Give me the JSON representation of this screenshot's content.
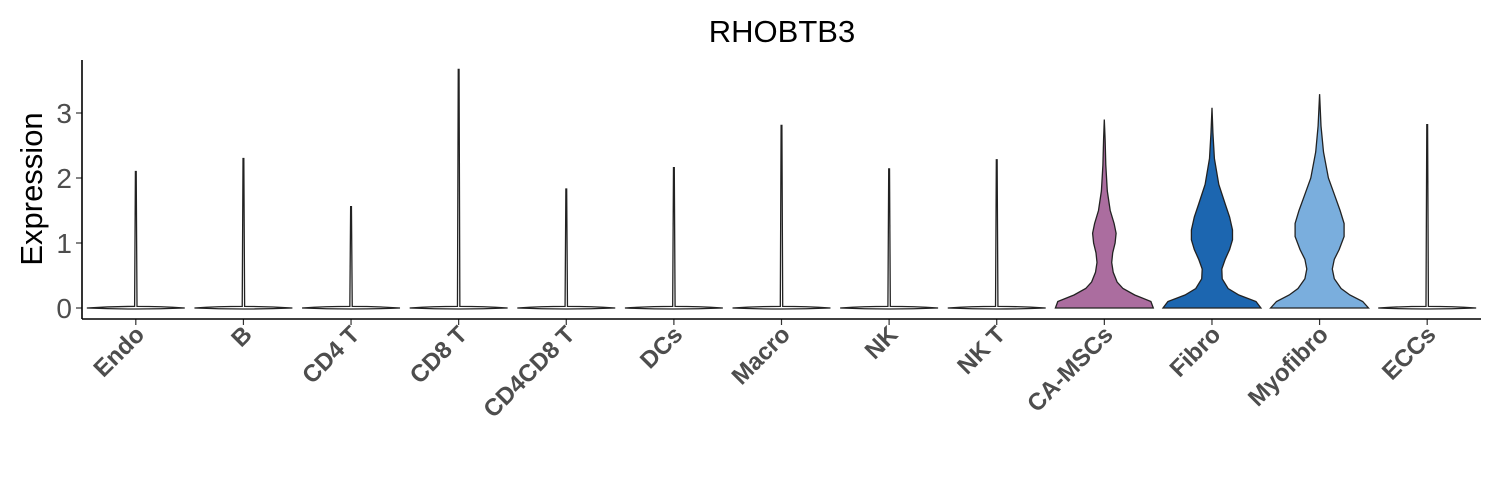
{
  "chart_data": {
    "type": "violin",
    "title": "RHOBTB3",
    "xlabel": "",
    "ylabel": "Expression",
    "ylim": [
      -0.2,
      3.8
    ],
    "yticks": [
      0,
      1,
      2,
      3
    ],
    "grid": false,
    "legend": "none",
    "categories": [
      "Endo",
      "B",
      "CD4 T",
      "CD8 T",
      "CD4CD8 T",
      "DCs",
      "Macro",
      "NK",
      "NK T",
      "CA-MSCs",
      "Fibro",
      "Myofibro",
      "ECCs"
    ],
    "max_values": [
      2.1,
      2.3,
      1.56,
      3.67,
      1.83,
      2.16,
      2.81,
      2.14,
      2.28,
      2.9,
      3.08,
      3.29,
      2.82
    ],
    "colors": [
      "#ffffff",
      "#ffffff",
      "#ffffff",
      "#ffffff",
      "#ffffff",
      "#ffffff",
      "#ffffff",
      "#ffffff",
      "#ffffff",
      "#ab6d9f",
      "#1c66b0",
      "#7aaedd",
      "#ffffff"
    ],
    "density_profiles": [
      null,
      null,
      null,
      null,
      null,
      null,
      null,
      null,
      null,
      [
        [
          0,
          1.0
        ],
        [
          0.1,
          0.95
        ],
        [
          0.2,
          0.62
        ],
        [
          0.3,
          0.38
        ],
        [
          0.4,
          0.26
        ],
        [
          0.55,
          0.18
        ],
        [
          0.7,
          0.15
        ],
        [
          0.85,
          0.17
        ],
        [
          1.0,
          0.22
        ],
        [
          1.15,
          0.24
        ],
        [
          1.3,
          0.2
        ],
        [
          1.5,
          0.12
        ],
        [
          1.8,
          0.06
        ],
        [
          2.2,
          0.03
        ],
        [
          2.6,
          0.015
        ],
        [
          2.9,
          0.0
        ]
      ],
      [
        [
          0,
          1.0
        ],
        [
          0.1,
          0.9
        ],
        [
          0.2,
          0.55
        ],
        [
          0.3,
          0.33
        ],
        [
          0.45,
          0.21
        ],
        [
          0.6,
          0.2
        ],
        [
          0.75,
          0.27
        ],
        [
          0.9,
          0.36
        ],
        [
          1.05,
          0.42
        ],
        [
          1.2,
          0.42
        ],
        [
          1.4,
          0.36
        ],
        [
          1.6,
          0.27
        ],
        [
          1.9,
          0.14
        ],
        [
          2.3,
          0.05
        ],
        [
          2.7,
          0.02
        ],
        [
          3.08,
          0.0
        ]
      ],
      [
        [
          0,
          1.0
        ],
        [
          0.1,
          0.88
        ],
        [
          0.2,
          0.62
        ],
        [
          0.3,
          0.44
        ],
        [
          0.45,
          0.3
        ],
        [
          0.6,
          0.26
        ],
        [
          0.75,
          0.3
        ],
        [
          0.9,
          0.4
        ],
        [
          1.1,
          0.5
        ],
        [
          1.3,
          0.5
        ],
        [
          1.5,
          0.42
        ],
        [
          1.75,
          0.3
        ],
        [
          2.0,
          0.18
        ],
        [
          2.4,
          0.08
        ],
        [
          2.8,
          0.03
        ],
        [
          3.29,
          0.0
        ]
      ],
      null
    ]
  }
}
